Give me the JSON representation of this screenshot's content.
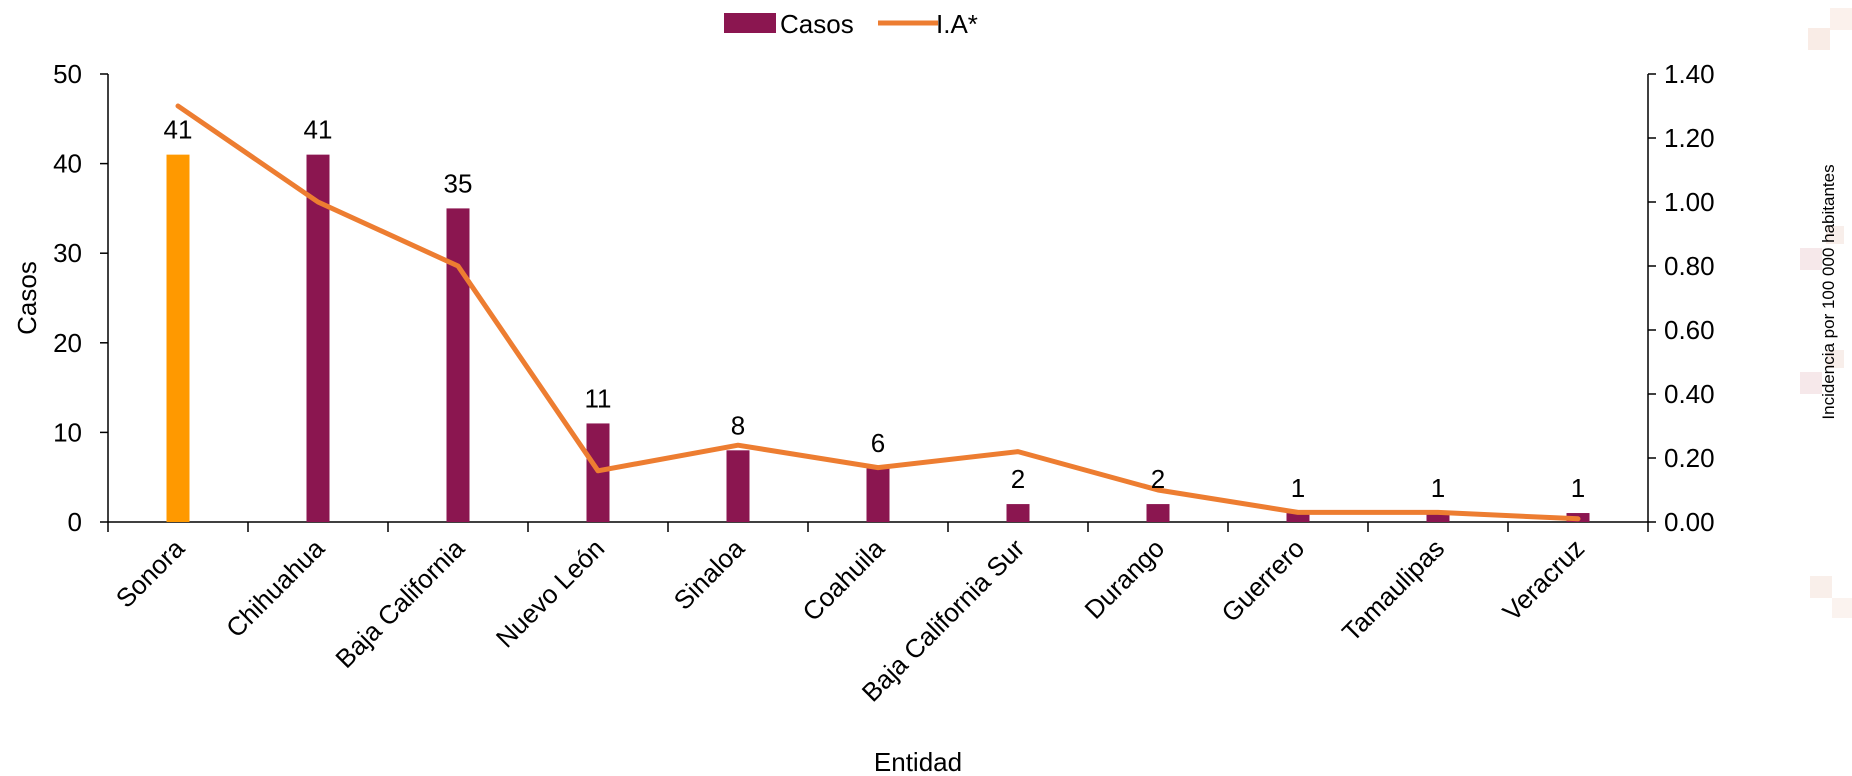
{
  "chart_data": {
    "type": "bar",
    "categories": [
      "Sonora",
      "Chihuahua",
      "Baja California",
      "Nuevo León",
      "Sinaloa",
      "Coahuila",
      "Baja California Sur",
      "Durango",
      "Guerrero",
      "Tamaulipas",
      "Veracruz"
    ],
    "series": [
      {
        "name": "Casos",
        "type": "bar",
        "axis": "left",
        "color": "#8B1650",
        "highlight_color": "#FF9900",
        "highlight_index": 0,
        "values": [
          41,
          41,
          35,
          11,
          8,
          6,
          2,
          2,
          1,
          1,
          1
        ],
        "data_labels": [
          "41",
          "41",
          "35",
          "11",
          "8",
          "6",
          "2",
          "2",
          "1",
          "1",
          "1"
        ]
      },
      {
        "name": "I.A*",
        "type": "line",
        "axis": "right",
        "color": "#ED7D31",
        "values": [
          1.3,
          1.0,
          0.8,
          0.16,
          0.24,
          0.17,
          0.22,
          0.1,
          0.03,
          0.03,
          0.01
        ]
      }
    ],
    "xlabel": "Entidad",
    "ylabel": "Casos",
    "y2label": "Incidencia por 100 000 habitantes",
    "ylim": [
      0,
      50
    ],
    "y2lim": [
      0,
      1.4
    ],
    "yticks": [
      "0",
      "10",
      "20",
      "30",
      "40",
      "50"
    ],
    "y2ticks": [
      "0.00",
      "0.20",
      "0.40",
      "0.60",
      "0.80",
      "1.00",
      "1.20",
      "1.40"
    ],
    "legend_position": "top-center",
    "grid": false
  }
}
